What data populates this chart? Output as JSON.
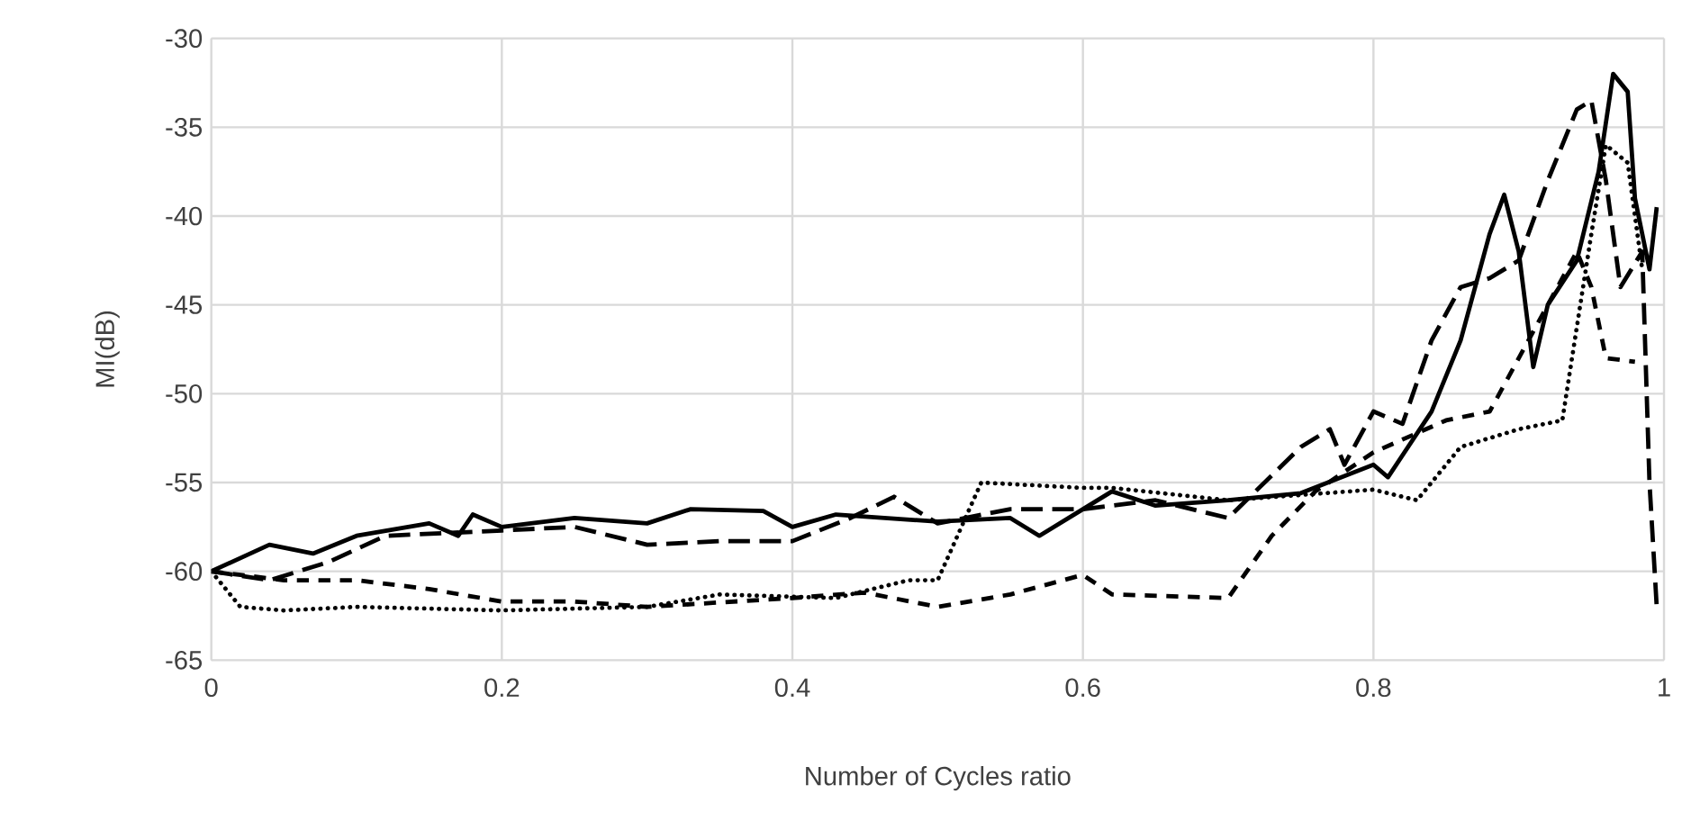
{
  "chart_data": {
    "type": "line",
    "xlabel": "Number of Cycles ratio",
    "ylabel": "MI(dB)",
    "xlim": [
      0,
      1
    ],
    "ylim": [
      -65,
      -30
    ],
    "xticks": [
      0,
      0.2,
      0.4,
      0.6,
      0.8,
      1
    ],
    "yticks": [
      -65,
      -60,
      -55,
      -50,
      -45,
      -40,
      -35,
      -30
    ],
    "grid": true,
    "marker": "none",
    "series": [
      {
        "color": "#000000",
        "line_style": "solid",
        "x": [
          0,
          0.04,
          0.07,
          0.1,
          0.15,
          0.17,
          0.18,
          0.2,
          0.25,
          0.3,
          0.33,
          0.38,
          0.4,
          0.43,
          0.5,
          0.55,
          0.57,
          0.6,
          0.62,
          0.65,
          0.7,
          0.75,
          0.8,
          0.81,
          0.84,
          0.86,
          0.88,
          0.89,
          0.9,
          0.91,
          0.92,
          0.94,
          0.955,
          0.965,
          0.975,
          0.98,
          0.99,
          0.995
        ],
        "values": [
          -60,
          -58.5,
          -59,
          -58,
          -57.3,
          -58,
          -56.8,
          -57.5,
          -57,
          -57.3,
          -56.5,
          -56.6,
          -57.5,
          -56.8,
          -57.2,
          -57,
          -58,
          -56.5,
          -55.5,
          -56.3,
          -56,
          -55.6,
          -54,
          -54.7,
          -51,
          -47,
          -41,
          -38.8,
          -42,
          -48.5,
          -45,
          -42.5,
          -37.5,
          -32,
          -33,
          -39,
          -43,
          -39.5
        ]
      },
      {
        "color": "#000000",
        "line_style": "dashed",
        "x": [
          0,
          0.04,
          0.08,
          0.12,
          0.2,
          0.25,
          0.3,
          0.35,
          0.4,
          0.44,
          0.47,
          0.5,
          0.55,
          0.6,
          0.65,
          0.7,
          0.75,
          0.77,
          0.78,
          0.8,
          0.82,
          0.84,
          0.86,
          0.88,
          0.9,
          0.92,
          0.94,
          0.95,
          0.96,
          0.97,
          0.985,
          0.99,
          0.995
        ],
        "values": [
          -60,
          -60.5,
          -59.5,
          -58,
          -57.7,
          -57.5,
          -58.5,
          -58.3,
          -58.3,
          -57,
          -55.8,
          -57.3,
          -56.5,
          -56.5,
          -56,
          -57,
          -53,
          -52,
          -54,
          -51,
          -51.7,
          -47,
          -44,
          -43.5,
          -42.5,
          -38,
          -34,
          -33.5,
          -38,
          -44,
          -42,
          -55,
          -62
        ]
      },
      {
        "color": "#000000",
        "line_style": "dashed",
        "x": [
          0,
          0.05,
          0.1,
          0.15,
          0.2,
          0.25,
          0.3,
          0.4,
          0.45,
          0.5,
          0.55,
          0.6,
          0.62,
          0.7,
          0.73,
          0.76,
          0.8,
          0.85,
          0.88,
          0.9,
          0.92,
          0.94,
          0.95,
          0.96,
          0.98
        ],
        "values": [
          -60,
          -60.5,
          -60.5,
          -61,
          -61.7,
          -61.7,
          -62,
          -61.5,
          -61.2,
          -62,
          -61.3,
          -60.2,
          -61.3,
          -61.5,
          -58,
          -55.5,
          -53.3,
          -51.5,
          -51,
          -48,
          -45,
          -42,
          -44,
          -48,
          -48.2
        ]
      },
      {
        "color": "#000000",
        "line_style": "dotted",
        "x": [
          0,
          0.02,
          0.05,
          0.1,
          0.2,
          0.3,
          0.35,
          0.43,
          0.48,
          0.5,
          0.53,
          0.6,
          0.62,
          0.7,
          0.8,
          0.83,
          0.86,
          0.9,
          0.93,
          0.95,
          0.96,
          0.975,
          0.985
        ],
        "values": [
          -60,
          -62,
          -62.2,
          -62,
          -62.2,
          -62,
          -61.3,
          -61.5,
          -60.5,
          -60.5,
          -55,
          -55.3,
          -55.3,
          -56,
          -55.4,
          -56,
          -53,
          -52,
          -51.5,
          -41,
          -36,
          -37,
          -43
        ]
      }
    ]
  }
}
